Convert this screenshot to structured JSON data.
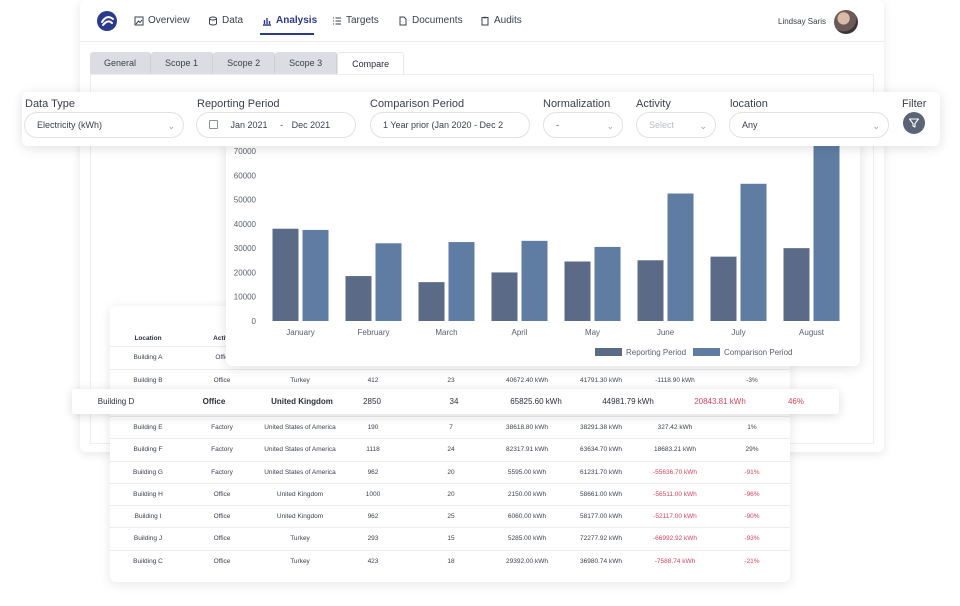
{
  "nav": {
    "items": [
      {
        "label": "Overview",
        "icon": "image-icon"
      },
      {
        "label": "Data",
        "icon": "database-icon"
      },
      {
        "label": "Analysis",
        "icon": "bar-chart-icon"
      },
      {
        "label": "Targets",
        "icon": "list-icon"
      },
      {
        "label": "Documents",
        "icon": "document-icon"
      },
      {
        "label": "Audits",
        "icon": "clipboard-icon"
      }
    ],
    "active": "Analysis",
    "user": "Lindsay Saris"
  },
  "tabs": [
    "General",
    "Scope 1",
    "Scope 2",
    "Scope 3",
    "Compare"
  ],
  "filters": {
    "data_type": {
      "label": "Data Type",
      "value": "Electricity (kWh)"
    },
    "reporting_period": {
      "label": "Reporting Period",
      "from": "Jan 2021",
      "sep": "-",
      "to": "Dec 2021"
    },
    "comparison_period": {
      "label": "Comparison Period",
      "value": "1 Year prior (Jan 2020 - Dec 2"
    },
    "normalization": {
      "label": "Normalization",
      "value": "-"
    },
    "activity": {
      "label": "Activity",
      "placeholder": "Select"
    },
    "location": {
      "label": "location",
      "value": "Any"
    },
    "filter": {
      "label": "Filter"
    }
  },
  "chart_data": {
    "type": "bar",
    "categories": [
      "January",
      "February",
      "March",
      "April",
      "May",
      "June",
      "July",
      "August"
    ],
    "series": [
      {
        "name": "Reporting Period",
        "values": [
          38000,
          18500,
          16000,
          20000,
          24500,
          25000,
          26500,
          30000
        ]
      },
      {
        "name": "Comparison Period",
        "values": [
          37500,
          32000,
          32500,
          33000,
          30500,
          52500,
          56500,
          72500
        ]
      }
    ],
    "ylim": [
      0,
      70000
    ],
    "yticks": [
      0,
      10000,
      20000,
      30000,
      40000,
      50000,
      60000,
      70000
    ],
    "legend": "bottom-right",
    "colors": {
      "reporting": "#5b6a86",
      "comparison": "#5f7da3"
    }
  },
  "table": {
    "columns": [
      "Location",
      "Activi"
    ],
    "rows": [
      [
        "Building A",
        "Offic",
        "",
        "",
        "",
        "",
        "",
        "",
        ""
      ],
      [
        "Building B",
        "Office",
        "Turkey",
        "412",
        "23",
        "40672.40 kWh",
        "41791.30 kWh",
        "-1118.90 kWh",
        "-3%"
      ],
      [
        "Building E",
        "Factory",
        "United States of America",
        "190",
        "7",
        "38618.80 kWh",
        "38291.38 kWh",
        "327.42 kWh",
        "1%"
      ],
      [
        "Building F",
        "Factory",
        "United States of America",
        "1118",
        "24",
        "82317.91 kWh",
        "63634.70 kWh",
        "18683.21 kWh",
        "29%"
      ],
      [
        "Building G",
        "Factory",
        "United States of America",
        "962",
        "20",
        "5595.00 kWh",
        "61231.70 kWh",
        "-55636.70 kWh",
        "-91%"
      ],
      [
        "Building H",
        "Office",
        "United Kingdom",
        "1000",
        "20",
        "2150.00 kWh",
        "58661.00 kWh",
        "-56511.00 kWh",
        "-96%"
      ],
      [
        "Building I",
        "Office",
        "United Kingdom",
        "962",
        "25",
        "6060.00 kWh",
        "58177.00 kWh",
        "-52117.00 kWh",
        "-90%"
      ],
      [
        "Building J",
        "Office",
        "Turkey",
        "293",
        "15",
        "5285.00 kWh",
        "72277.92 kWh",
        "-66992.92 kWh",
        "-93%"
      ],
      [
        "Building C",
        "Office",
        "Turkey",
        "423",
        "18",
        "29392.00 kWh",
        "36980.74 kWh",
        "-7588.74 kWh",
        "-21%"
      ]
    ],
    "highlight_row": [
      "Building D",
      "Office",
      "United Kingdom",
      "2850",
      "34",
      "65825.60 kWh",
      "44981.79 kWh",
      "20843.81 kWh",
      "46%"
    ]
  }
}
